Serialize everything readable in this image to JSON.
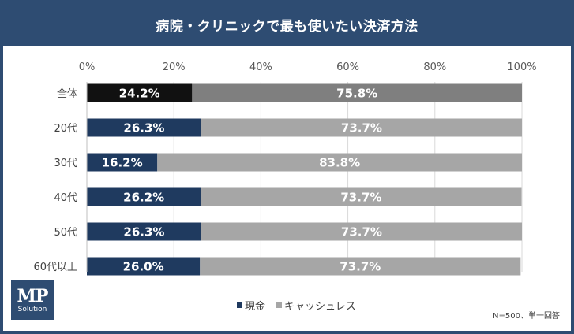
{
  "title": "病院・クリニックで最も使いたい決済方法",
  "note": "N=500、単一回答",
  "logo": {
    "main": "MP",
    "sub": "Solution"
  },
  "colors": {
    "cash": "#1f3a5f",
    "cashless": "#a6a6a6",
    "total_cash": "#111111",
    "total_cashless": "#7f7f7f"
  },
  "chart_data": {
    "type": "bar",
    "orientation": "horizontal",
    "stacked": true,
    "categories": [
      "全体",
      "20代",
      "30代",
      "40代",
      "50代",
      "60代以上"
    ],
    "series": [
      {
        "name": "現金",
        "values": [
          24.2,
          26.3,
          16.2,
          26.2,
          26.3,
          26.0
        ],
        "labels": [
          "24.2%",
          "26.3%",
          "16.2%",
          "26.2%",
          "26.3%",
          "26.0%"
        ]
      },
      {
        "name": "キャッシュレス",
        "values": [
          75.8,
          73.7,
          83.8,
          73.7,
          73.7,
          73.7
        ],
        "labels": [
          "75.8%",
          "73.7%",
          "83.8%",
          "73.7%",
          "73.7%",
          "73.7%"
        ]
      }
    ],
    "xlim": [
      0,
      100
    ],
    "xticks": [
      "0%",
      "20%",
      "40%",
      "60%",
      "80%",
      "100%"
    ],
    "grid": true,
    "legend": "bottom"
  }
}
